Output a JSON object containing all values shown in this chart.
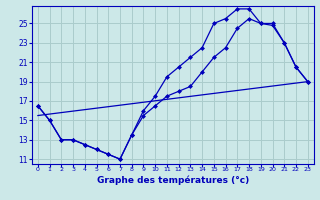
{
  "xlabel": "Graphe des températures (°c)",
  "bg_color": "#cce8e8",
  "grid_color": "#aacccc",
  "line_color": "#0000bb",
  "xlim": [
    -0.5,
    23.5
  ],
  "ylim": [
    10.5,
    26.8
  ],
  "yticks": [
    11,
    13,
    15,
    17,
    19,
    21,
    23,
    25
  ],
  "xticks": [
    0,
    1,
    2,
    3,
    4,
    5,
    6,
    7,
    8,
    9,
    10,
    11,
    12,
    13,
    14,
    15,
    16,
    17,
    18,
    19,
    20,
    21,
    22,
    23
  ],
  "line1_x": [
    0,
    1,
    2,
    3,
    4,
    5,
    6,
    7,
    8,
    9,
    10,
    11,
    12,
    13,
    14,
    15,
    16,
    17,
    18,
    19,
    20,
    21,
    22,
    23
  ],
  "line1_y": [
    16.5,
    15.0,
    13.0,
    13.0,
    12.5,
    12.0,
    11.5,
    11.0,
    13.5,
    15.5,
    16.5,
    17.5,
    18.0,
    18.5,
    20.0,
    21.5,
    22.5,
    24.5,
    25.5,
    25.0,
    25.0,
    23.0,
    20.5,
    19.0
  ],
  "line2_x": [
    0,
    1,
    2,
    3,
    4,
    5,
    6,
    7,
    8,
    9,
    10,
    11,
    12,
    13,
    14,
    15,
    16,
    17,
    18,
    19,
    20,
    21,
    22,
    23
  ],
  "line2_y": [
    16.5,
    15.0,
    13.0,
    13.0,
    12.5,
    12.0,
    11.5,
    11.0,
    13.5,
    16.0,
    17.5,
    19.5,
    20.5,
    21.5,
    22.5,
    25.0,
    25.5,
    26.5,
    26.5,
    25.0,
    24.8,
    23.0,
    20.5,
    19.0
  ],
  "line3_x": [
    0,
    23
  ],
  "line3_y": [
    15.5,
    19.0
  ]
}
